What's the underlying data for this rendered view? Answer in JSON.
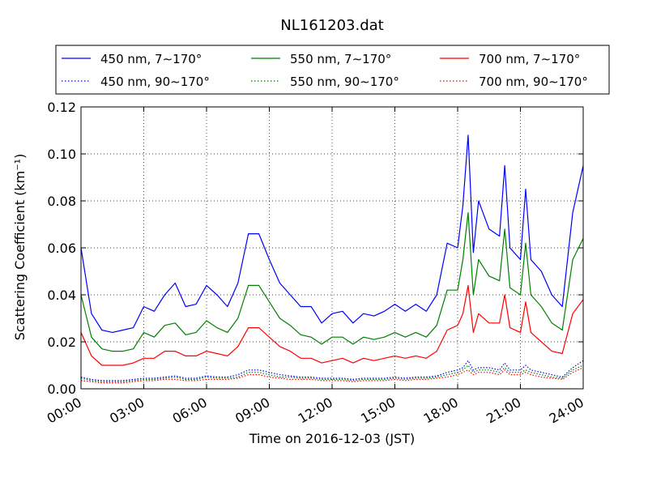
{
  "chart_data": {
    "type": "line",
    "title": "NL161203.dat",
    "xlabel": "Time on 2016-12-03 (JST)",
    "ylabel": "Scattering Coefficient (km⁻¹)",
    "x_unit": "hours",
    "xlim": [
      0,
      24
    ],
    "ylim": [
      0,
      0.12
    ],
    "grid": true,
    "legend_position": "above plot",
    "x_ticks": [
      {
        "value": 0,
        "label": "00:00"
      },
      {
        "value": 3,
        "label": "03:00"
      },
      {
        "value": 6,
        "label": "06:00"
      },
      {
        "value": 9,
        "label": "09:00"
      },
      {
        "value": 12,
        "label": "12:00"
      },
      {
        "value": 15,
        "label": "15:00"
      },
      {
        "value": 18,
        "label": "18:00"
      },
      {
        "value": 21,
        "label": "21:00"
      },
      {
        "value": 24,
        "label": "24:00"
      }
    ],
    "y_ticks": [
      {
        "value": 0,
        "label": "0.00"
      },
      {
        "value": 0.02,
        "label": "0.02"
      },
      {
        "value": 0.04,
        "label": "0.04"
      },
      {
        "value": 0.06,
        "label": "0.06"
      },
      {
        "value": 0.08,
        "label": "0.08"
      },
      {
        "value": 0.1,
        "label": "0.10"
      },
      {
        "value": 0.12,
        "label": "0.12"
      }
    ],
    "x": [
      0,
      0.5,
      1,
      1.5,
      2,
      2.5,
      3,
      3.5,
      4,
      4.5,
      5,
      5.5,
      6,
      6.5,
      7,
      7.5,
      8,
      8.5,
      9,
      9.5,
      10,
      10.5,
      11,
      11.5,
      12,
      12.5,
      13,
      13.5,
      14,
      14.5,
      15,
      15.5,
      16,
      16.5,
      17,
      17.5,
      18,
      18.25,
      18.5,
      18.75,
      19,
      19.5,
      20,
      20.25,
      20.5,
      21,
      21.25,
      21.5,
      22,
      22.5,
      23,
      23.5,
      24
    ],
    "series": [
      {
        "name": "450 nm, 7∼170°",
        "color": "#0000ff",
        "style": "solid",
        "values": [
          0.06,
          0.032,
          0.025,
          0.024,
          0.025,
          0.026,
          0.035,
          0.033,
          0.04,
          0.045,
          0.035,
          0.036,
          0.044,
          0.04,
          0.035,
          0.045,
          0.066,
          0.066,
          0.055,
          0.045,
          0.04,
          0.035,
          0.035,
          0.028,
          0.032,
          0.033,
          0.028,
          0.032,
          0.031,
          0.033,
          0.036,
          0.033,
          0.036,
          0.033,
          0.04,
          0.062,
          0.06,
          0.078,
          0.108,
          0.058,
          0.08,
          0.068,
          0.065,
          0.095,
          0.06,
          0.055,
          0.085,
          0.055,
          0.05,
          0.04,
          0.035,
          0.075,
          0.095
        ]
      },
      {
        "name": "450 nm, 90∼170°",
        "color": "#0000ff",
        "style": "dotted",
        "values": [
          0.005,
          0.004,
          0.0035,
          0.0035,
          0.0035,
          0.004,
          0.0045,
          0.0045,
          0.005,
          0.0055,
          0.0045,
          0.0045,
          0.0055,
          0.005,
          0.005,
          0.006,
          0.008,
          0.008,
          0.007,
          0.006,
          0.0055,
          0.005,
          0.005,
          0.0045,
          0.0045,
          0.0045,
          0.004,
          0.0045,
          0.0045,
          0.0045,
          0.005,
          0.0045,
          0.005,
          0.005,
          0.0055,
          0.007,
          0.008,
          0.009,
          0.012,
          0.008,
          0.009,
          0.009,
          0.008,
          0.011,
          0.008,
          0.008,
          0.01,
          0.008,
          0.007,
          0.006,
          0.005,
          0.009,
          0.012
        ]
      },
      {
        "name": "550 nm, 7∼170°",
        "color": "#008000",
        "style": "solid",
        "values": [
          0.04,
          0.022,
          0.017,
          0.016,
          0.016,
          0.017,
          0.024,
          0.022,
          0.027,
          0.028,
          0.023,
          0.024,
          0.029,
          0.026,
          0.024,
          0.03,
          0.044,
          0.044,
          0.037,
          0.03,
          0.027,
          0.023,
          0.022,
          0.019,
          0.022,
          0.022,
          0.019,
          0.022,
          0.021,
          0.022,
          0.024,
          0.022,
          0.024,
          0.022,
          0.027,
          0.042,
          0.042,
          0.055,
          0.075,
          0.04,
          0.055,
          0.048,
          0.046,
          0.068,
          0.043,
          0.04,
          0.062,
          0.04,
          0.035,
          0.028,
          0.025,
          0.055,
          0.064
        ]
      },
      {
        "name": "550 nm, 90∼170°",
        "color": "#008000",
        "style": "dotted",
        "values": [
          0.0045,
          0.0035,
          0.003,
          0.003,
          0.003,
          0.0035,
          0.004,
          0.004,
          0.0045,
          0.005,
          0.004,
          0.004,
          0.005,
          0.0045,
          0.0045,
          0.005,
          0.007,
          0.007,
          0.006,
          0.005,
          0.005,
          0.0045,
          0.0045,
          0.004,
          0.004,
          0.004,
          0.0035,
          0.004,
          0.004,
          0.004,
          0.0045,
          0.004,
          0.0045,
          0.0045,
          0.005,
          0.006,
          0.007,
          0.008,
          0.01,
          0.007,
          0.008,
          0.008,
          0.007,
          0.009,
          0.007,
          0.007,
          0.008,
          0.007,
          0.006,
          0.005,
          0.0045,
          0.008,
          0.01
        ]
      },
      {
        "name": "700 nm, 7∼170°",
        "color": "#ff0000",
        "style": "solid",
        "values": [
          0.024,
          0.014,
          0.01,
          0.01,
          0.01,
          0.011,
          0.013,
          0.013,
          0.016,
          0.016,
          0.014,
          0.014,
          0.016,
          0.015,
          0.014,
          0.018,
          0.026,
          0.026,
          0.022,
          0.018,
          0.016,
          0.013,
          0.013,
          0.011,
          0.012,
          0.013,
          0.011,
          0.013,
          0.012,
          0.013,
          0.014,
          0.013,
          0.014,
          0.013,
          0.016,
          0.025,
          0.027,
          0.032,
          0.044,
          0.024,
          0.032,
          0.028,
          0.028,
          0.04,
          0.026,
          0.024,
          0.037,
          0.024,
          0.02,
          0.016,
          0.015,
          0.032,
          0.038
        ]
      },
      {
        "name": "700 nm, 90∼170°",
        "color": "#ff0000",
        "style": "dotted",
        "values": [
          0.0035,
          0.003,
          0.0025,
          0.0025,
          0.0025,
          0.003,
          0.0035,
          0.0035,
          0.004,
          0.004,
          0.0035,
          0.0035,
          0.004,
          0.004,
          0.004,
          0.0045,
          0.006,
          0.006,
          0.005,
          0.0045,
          0.004,
          0.004,
          0.004,
          0.0035,
          0.0035,
          0.0035,
          0.003,
          0.0035,
          0.0035,
          0.0035,
          0.004,
          0.0035,
          0.004,
          0.004,
          0.0045,
          0.005,
          0.006,
          0.007,
          0.008,
          0.006,
          0.007,
          0.007,
          0.006,
          0.008,
          0.006,
          0.006,
          0.007,
          0.006,
          0.005,
          0.0045,
          0.004,
          0.007,
          0.009
        ]
      }
    ]
  }
}
